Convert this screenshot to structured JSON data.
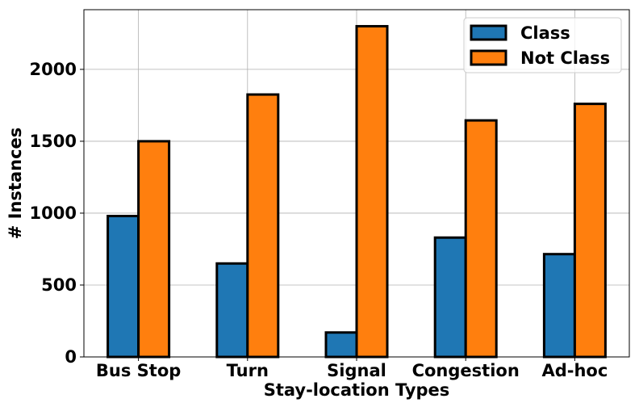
{
  "chart_data": {
    "type": "bar",
    "categories": [
      "Bus Stop",
      "Turn",
      "Signal",
      "Congestion",
      "Ad-hoc"
    ],
    "series": [
      {
        "name": "Class",
        "color": "#1f77b4",
        "values": [
          980,
          650,
          170,
          830,
          715
        ]
      },
      {
        "name": "Not Class",
        "color": "#ff7f0e",
        "values": [
          1500,
          1825,
          2300,
          1645,
          1760
        ]
      }
    ],
    "xlabel": "Stay-location Types",
    "ylabel": "# Instances",
    "ylim": [
      0,
      2415
    ],
    "yticks": [
      0,
      500,
      1000,
      1500,
      2000
    ],
    "grid": true,
    "legend_position": "top-right"
  }
}
